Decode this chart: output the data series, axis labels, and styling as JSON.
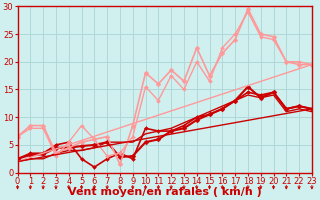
{
  "bg_color": "#d0f0f0",
  "grid_color": "#b0d8d8",
  "xlabel": "Vent moyen/en rafales ( km/h )",
  "xlim": [
    0,
    23
  ],
  "ylim": [
    0,
    30
  ],
  "yticks": [
    0,
    5,
    10,
    15,
    20,
    25,
    30
  ],
  "xticks": [
    0,
    1,
    2,
    3,
    4,
    5,
    6,
    7,
    8,
    9,
    10,
    11,
    12,
    13,
    14,
    15,
    16,
    17,
    18,
    19,
    20,
    21,
    22,
    23
  ],
  "series": [
    {
      "x": [
        0,
        1,
        2,
        3,
        4,
        5,
        6,
        7,
        8,
        9,
        10,
        11,
        12,
        13,
        14,
        15,
        16,
        17,
        18,
        19,
        20,
        21,
        22,
        23
      ],
      "y": [
        2.5,
        3.2,
        3.3,
        4.5,
        4.5,
        4.8,
        5.0,
        5.5,
        2.8,
        3.0,
        5.5,
        6.0,
        7.5,
        8.0,
        9.5,
        10.5,
        11.5,
        13.0,
        15.5,
        13.5,
        14.5,
        11.5,
        12.0,
        11.5
      ],
      "color": "#cc0000",
      "linewidth": 1.5,
      "marker": "D",
      "markersize": 2.5
    },
    {
      "x": [
        0,
        1,
        2,
        3,
        4,
        5,
        6,
        7,
        8,
        9,
        10,
        11,
        12,
        13,
        14,
        15,
        16,
        17,
        18,
        19,
        20,
        21,
        22,
        23
      ],
      "y": [
        2.5,
        3.5,
        3.5,
        5.0,
        5.5,
        2.5,
        1.0,
        2.5,
        3.5,
        2.5,
        8.0,
        7.5,
        7.5,
        8.5,
        10.0,
        10.5,
        11.5,
        13.0,
        14.5,
        14.0,
        14.5,
        11.5,
        12.0,
        11.5
      ],
      "color": "#cc0000",
      "linewidth": 1.2,
      "marker": "D",
      "markersize": 2.0
    },
    {
      "x": [
        0,
        1,
        2,
        3,
        4,
        5,
        6,
        7,
        8,
        9,
        10,
        11,
        12,
        13,
        14,
        15,
        16,
        17,
        18,
        19,
        20,
        21,
        22,
        23
      ],
      "y": [
        2.0,
        2.5,
        2.5,
        3.5,
        4.0,
        4.0,
        4.5,
        5.5,
        5.5,
        5.5,
        7.0,
        7.5,
        8.0,
        9.0,
        10.0,
        11.0,
        12.0,
        13.0,
        14.0,
        13.5,
        14.0,
        11.0,
        11.5,
        11.0
      ],
      "color": "#cc0000",
      "linewidth": 1.0,
      "marker": null,
      "markersize": 0
    },
    {
      "x": [
        0,
        1,
        2,
        3,
        4,
        5,
        6,
        7,
        8,
        9,
        10,
        11,
        12,
        13,
        14,
        15,
        16,
        17,
        18,
        19,
        20,
        21,
        22,
        23
      ],
      "y": [
        6.5,
        8.5,
        8.5,
        3.5,
        4.5,
        5.5,
        6.0,
        6.5,
        1.5,
        8.5,
        18.0,
        16.0,
        18.5,
        16.5,
        22.5,
        17.5,
        21.5,
        24.0,
        29.5,
        25.0,
        24.5,
        20.0,
        19.5,
        19.5
      ],
      "color": "#ff9999",
      "linewidth": 1.2,
      "marker": "D",
      "markersize": 2.5
    },
    {
      "x": [
        0,
        1,
        2,
        3,
        4,
        5,
        6,
        7,
        8,
        9,
        10,
        11,
        12,
        13,
        14,
        15,
        16,
        17,
        18,
        19,
        20,
        21,
        22,
        23
      ],
      "y": [
        6.5,
        8.0,
        8.0,
        3.0,
        5.5,
        8.5,
        6.0,
        3.0,
        3.5,
        6.5,
        15.5,
        13.0,
        17.5,
        15.0,
        20.0,
        16.5,
        22.5,
        25.0,
        29.0,
        24.5,
        24.0,
        20.0,
        20.0,
        19.5
      ],
      "color": "#ff9999",
      "linewidth": 1.0,
      "marker": "D",
      "markersize": 2.0
    },
    {
      "x": [
        0,
        23
      ],
      "y": [
        2.0,
        19.5
      ],
      "color": "#ff9999",
      "linewidth": 1.0,
      "marker": null,
      "markersize": 0
    },
    {
      "x": [
        0,
        23
      ],
      "y": [
        2.0,
        11.5
      ],
      "color": "#cc0000",
      "linewidth": 1.0,
      "marker": null,
      "markersize": 0
    }
  ],
  "arrow_color": "#cc0000",
  "xlabel_color": "#cc0000",
  "xlabel_fontsize": 8,
  "tick_fontsize": 6,
  "tick_color": "#cc0000",
  "axis_color": "#cc0000"
}
